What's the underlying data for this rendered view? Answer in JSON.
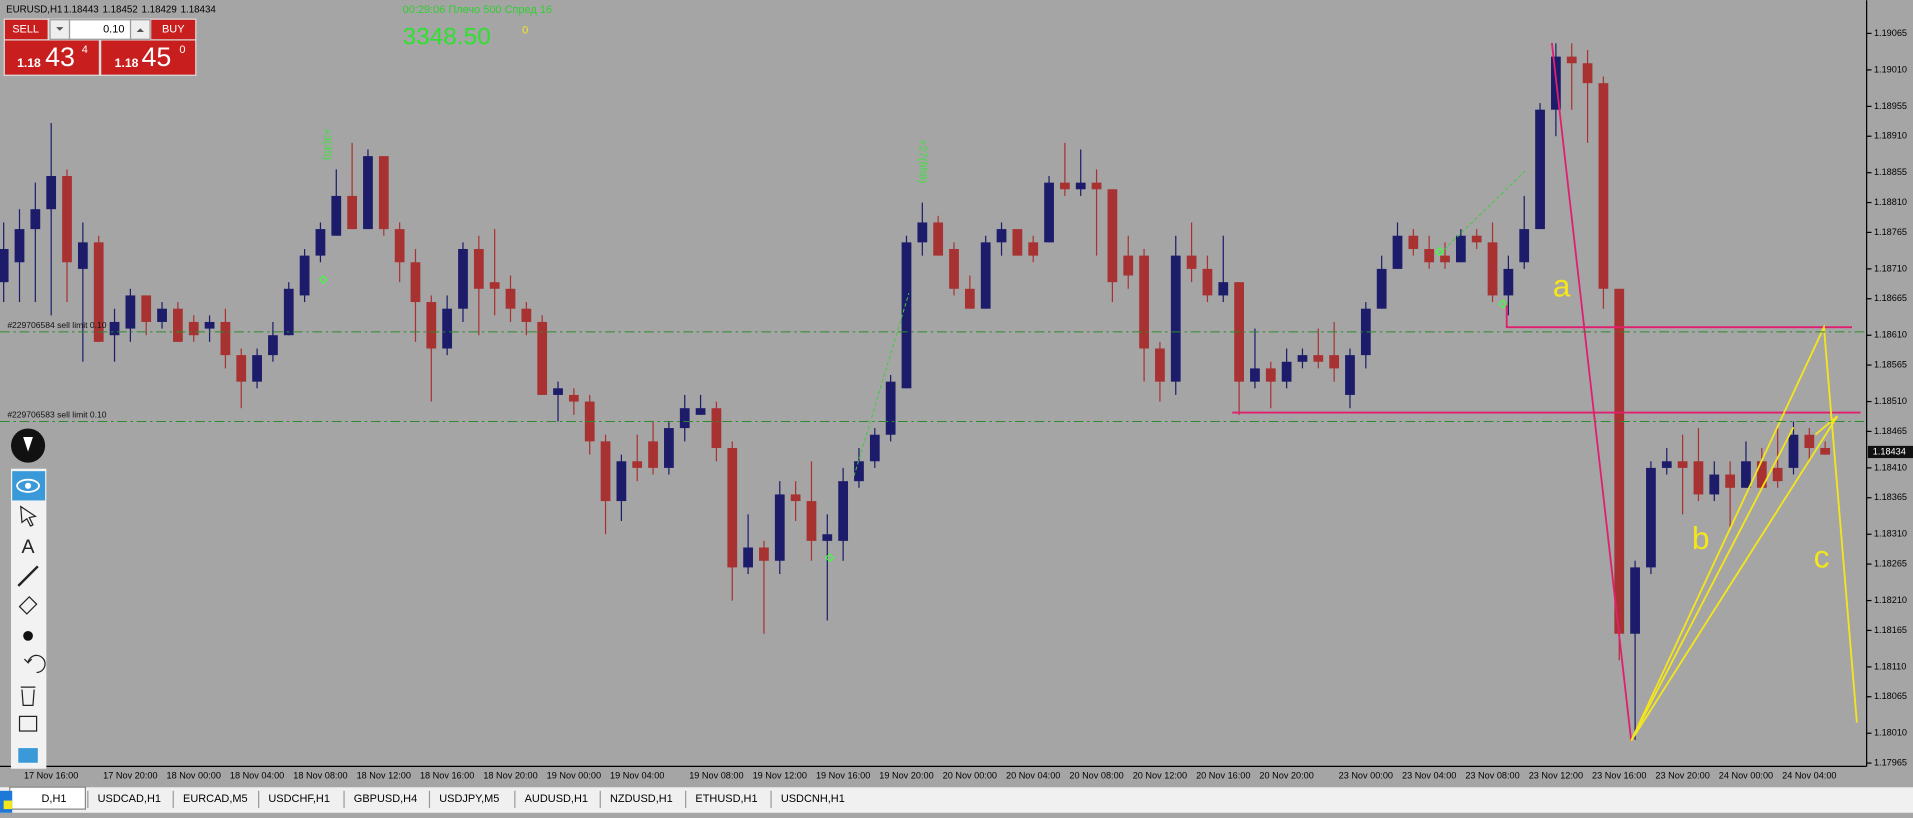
{
  "header": {
    "symbol": "EURUSD,H1",
    "ohlc": [
      1.18443,
      1.18452,
      1.18429,
      1.18434
    ]
  },
  "trade_panel": {
    "sell": "SELL",
    "buy": "BUY",
    "lot": "0.10",
    "bid": {
      "big": "1.18",
      "pips": "43",
      "point": "4"
    },
    "ask": {
      "big": "1.18",
      "pips": "45",
      "point": "0"
    }
  },
  "info": {
    "status": "00:29:06 Плечо 500 Спред 16",
    "balance": "3348.50",
    "counter": "0"
  },
  "tabs": [
    "D,H1",
    "USDCAD,H1",
    "EURCAD,M5",
    "USDCHF,H1",
    "GBPUSD,H4",
    "USDJPY,M5",
    "AUDUSD,H1",
    "NZDUSD,H1",
    "ETHUSD,H1",
    "USDCNH,H1"
  ],
  "chart_data": {
    "type": "candlestick",
    "up_color": "#1c1c6b",
    "down_color": "#a83232",
    "ylim": [
      1.1796,
      1.19115
    ],
    "yticks": [
      1.19065,
      {
        "value": 1.1901,
        "label": "1.19010"
      },
      1.18955,
      {
        "value": 1.1891,
        "label": "1.18910"
      },
      1.18855,
      {
        "value": 1.1881,
        "label": "1.18810"
      },
      1.18765,
      {
        "value": 1.1871,
        "label": "1.18710"
      },
      1.18665,
      {
        "value": 1.1861,
        "label": "1.18610"
      },
      1.18565,
      {
        "value": 1.1851,
        "label": "1.18510"
      },
      1.18465,
      {
        "value": 1.1841,
        "label": "1.18410"
      },
      1.18365,
      {
        "value": 1.1831,
        "label": "1.18310"
      },
      1.18265,
      {
        "value": 1.1821,
        "label": "1.18210"
      },
      1.18165,
      {
        "value": 1.1811,
        "label": "1.18110"
      },
      1.18065,
      {
        "value": 1.1801,
        "label": "1.18010"
      },
      1.17965
    ],
    "last_price": 1.18434,
    "orders": [
      {
        "label": "#229706584 sell limit 0.10",
        "price": 1.18615
      },
      {
        "label": "#229706583 sell limit 0.10",
        "price": 1.1848
      }
    ],
    "annotations": [
      "+3(45)",
      "+27(858)",
      "a",
      "b",
      "c"
    ],
    "categories": [
      null,
      null,
      null,
      "17 Nov 16:00",
      null,
      null,
      null,
      null,
      "17 Nov 20:00",
      null,
      null,
      null,
      "18 Nov 00:00",
      null,
      null,
      null,
      "18 Nov 04:00",
      null,
      null,
      null,
      "18 Nov 08:00",
      null,
      null,
      null,
      "18 Nov 12:00",
      null,
      null,
      null,
      "18 Nov 16:00",
      null,
      null,
      null,
      "18 Nov 20:00",
      null,
      null,
      null,
      "19 Nov 00:00",
      null,
      null,
      null,
      "19 Nov 04:00",
      null,
      null,
      null,
      null,
      "19 Nov 08:00",
      null,
      null,
      null,
      "19 Nov 12:00",
      null,
      null,
      null,
      "19 Nov 16:00",
      null,
      null,
      null,
      "19 Nov 20:00",
      null,
      null,
      null,
      "20 Nov 00:00",
      null,
      null,
      null,
      "20 Nov 04:00",
      null,
      null,
      null,
      "20 Nov 08:00",
      null,
      null,
      null,
      "20 Nov 12:00",
      null,
      null,
      null,
      "20 Nov 16:00",
      null,
      null,
      null,
      "20 Nov 20:00",
      null,
      null,
      null,
      null,
      "23 Nov 00:00",
      null,
      null,
      null,
      "23 Nov 04:00",
      null,
      null,
      null,
      "23 Nov 08:00",
      null,
      null,
      null,
      "23 Nov 12:00",
      null,
      null,
      null,
      "23 Nov 16:00",
      null,
      null,
      null,
      "23 Nov 20:00",
      null,
      null,
      null,
      "24 Nov 00:00",
      null,
      null,
      null,
      "24 Nov 04:00",
      null
    ],
    "candles": [
      [
        1.1869,
        1.1878,
        1.1866,
        1.1874
      ],
      [
        1.1872,
        1.188,
        1.1866,
        1.1877
      ],
      [
        1.1877,
        1.1884,
        1.1866,
        1.188
      ],
      [
        1.188,
        1.1893,
        1.1864,
        1.1885
      ],
      [
        1.1885,
        1.1886,
        1.1866,
        1.1872
      ],
      [
        1.1871,
        1.1878,
        1.1857,
        1.1875
      ],
      [
        1.1875,
        1.1876,
        1.186,
        1.186
      ],
      [
        1.1861,
        1.1865,
        1.1857,
        1.1863
      ],
      [
        1.1862,
        1.1868,
        1.186,
        1.1867
      ],
      [
        1.1867,
        1.1867,
        1.1861,
        1.1863
      ],
      [
        1.1863,
        1.1866,
        1.1862,
        1.1865
      ],
      [
        1.1865,
        1.1866,
        1.186,
        1.186
      ],
      [
        1.1863,
        1.1864,
        1.186,
        1.1861
      ],
      [
        1.1862,
        1.1864,
        1.186,
        1.1863
      ],
      [
        1.1863,
        1.1865,
        1.1856,
        1.1858
      ],
      [
        1.1858,
        1.1859,
        1.185,
        1.1854
      ],
      [
        1.1854,
        1.1859,
        1.1853,
        1.1858
      ],
      [
        1.1858,
        1.1863,
        1.1857,
        1.1861
      ],
      [
        1.1861,
        1.1869,
        1.1861,
        1.1868
      ],
      [
        1.1867,
        1.1874,
        1.1866,
        1.1873
      ],
      [
        1.1873,
        1.1878,
        1.1872,
        1.1877
      ],
      [
        1.1876,
        1.1886,
        1.1876,
        1.1882
      ],
      [
        1.1882,
        1.189,
        1.1877,
        1.1877
      ],
      [
        1.1877,
        1.1889,
        1.1877,
        1.1888
      ],
      [
        1.1888,
        1.1888,
        1.1876,
        1.1877
      ],
      [
        1.1877,
        1.1878,
        1.1869,
        1.1872
      ],
      [
        1.1872,
        1.1874,
        1.186,
        1.1866
      ],
      [
        1.1866,
        1.1867,
        1.1851,
        1.1859
      ],
      [
        1.1859,
        1.1867,
        1.1858,
        1.1865
      ],
      [
        1.1865,
        1.1875,
        1.1863,
        1.1874
      ],
      [
        1.1874,
        1.1876,
        1.1861,
        1.1868
      ],
      [
        1.1869,
        1.1877,
        1.1864,
        1.1868
      ],
      [
        1.1868,
        1.187,
        1.1863,
        1.1865
      ],
      [
        1.1865,
        1.1866,
        1.1861,
        1.1863
      ],
      [
        1.1863,
        1.1864,
        1.1852,
        1.1852
      ],
      [
        1.1852,
        1.1854,
        1.1848,
        1.1853
      ],
      [
        1.1852,
        1.1853,
        1.1849,
        1.1851
      ],
      [
        1.1851,
        1.1852,
        1.1843,
        1.1845
      ],
      [
        1.1845,
        1.1846,
        1.1831,
        1.1836
      ],
      [
        1.1836,
        1.1843,
        1.1833,
        1.1842
      ],
      [
        1.1842,
        1.1846,
        1.1839,
        1.1841
      ],
      [
        1.1845,
        1.1848,
        1.184,
        1.1841
      ],
      [
        1.1841,
        1.1848,
        1.184,
        1.1847
      ],
      [
        1.1847,
        1.1852,
        1.1845,
        1.185
      ],
      [
        1.1849,
        1.1852,
        1.1849,
        1.185
      ],
      [
        1.185,
        1.1851,
        1.1842,
        1.1844
      ],
      [
        1.1844,
        1.1845,
        1.1821,
        1.1826
      ],
      [
        1.1826,
        1.1834,
        1.1825,
        1.1829
      ],
      [
        1.1829,
        1.183,
        1.1816,
        1.1827
      ],
      [
        1.1827,
        1.1839,
        1.1825,
        1.1837
      ],
      [
        1.1837,
        1.1839,
        1.1833,
        1.1836
      ],
      [
        1.1836,
        1.1842,
        1.1827,
        1.183
      ],
      [
        1.183,
        1.1834,
        1.1818,
        1.1831
      ],
      [
        1.183,
        1.1841,
        1.1827,
        1.1839
      ],
      [
        1.1839,
        1.1844,
        1.1838,
        1.1842
      ],
      [
        1.1842,
        1.1847,
        1.1841,
        1.1846
      ],
      [
        1.1846,
        1.1855,
        1.1845,
        1.1854
      ],
      [
        1.1853,
        1.1876,
        1.1853,
        1.1875
      ],
      [
        1.1875,
        1.1881,
        1.1873,
        1.1878
      ],
      [
        1.1878,
        1.1879,
        1.1873,
        1.1873
      ],
      [
        1.1874,
        1.1875,
        1.1867,
        1.1868
      ],
      [
        1.1868,
        1.187,
        1.1865,
        1.1865
      ],
      [
        1.1865,
        1.1876,
        1.1865,
        1.1875
      ],
      [
        1.1875,
        1.1878,
        1.1873,
        1.1877
      ],
      [
        1.1877,
        1.1877,
        1.1873,
        1.1873
      ],
      [
        1.1875,
        1.1876,
        1.1872,
        1.1873
      ],
      [
        1.1875,
        1.1885,
        1.1875,
        1.1884
      ],
      [
        1.1884,
        1.189,
        1.1882,
        1.1883
      ],
      [
        1.1883,
        1.1889,
        1.1882,
        1.1884
      ],
      [
        1.1884,
        1.1886,
        1.1873,
        1.1883
      ],
      [
        1.1883,
        1.1883,
        1.1866,
        1.1869
      ],
      [
        1.1873,
        1.1876,
        1.1868,
        1.187
      ],
      [
        1.1873,
        1.1874,
        1.1854,
        1.1859
      ],
      [
        1.1859,
        1.186,
        1.1851,
        1.1854
      ],
      [
        1.1854,
        1.1876,
        1.1852,
        1.1873
      ],
      [
        1.1873,
        1.1878,
        1.1869,
        1.1871
      ],
      [
        1.1871,
        1.1873,
        1.1866,
        1.1867
      ],
      [
        1.1867,
        1.1876,
        1.1866,
        1.1869
      ],
      [
        1.1869,
        1.1869,
        1.1849,
        1.1854
      ],
      [
        1.1854,
        1.1862,
        1.1853,
        1.1856
      ],
      [
        1.1856,
        1.1857,
        1.185,
        1.1854
      ],
      [
        1.1854,
        1.1859,
        1.1853,
        1.1857
      ],
      [
        1.1857,
        1.1859,
        1.1856,
        1.1858
      ],
      [
        1.1858,
        1.1862,
        1.1856,
        1.1857
      ],
      [
        1.1858,
        1.1863,
        1.1854,
        1.1856
      ],
      [
        1.1852,
        1.1859,
        1.185,
        1.1858
      ],
      [
        1.1858,
        1.1866,
        1.1856,
        1.1865
      ],
      [
        1.1865,
        1.1873,
        1.1865,
        1.1871
      ],
      [
        1.1871,
        1.1878,
        1.1871,
        1.1876
      ],
      [
        1.1876,
        1.1877,
        1.1873,
        1.1874
      ],
      [
        1.1874,
        1.1876,
        1.1871,
        1.1872
      ],
      [
        1.1873,
        1.1875,
        1.1871,
        1.1872
      ],
      [
        1.1872,
        1.1877,
        1.1872,
        1.1876
      ],
      [
        1.1876,
        1.1877,
        1.1874,
        1.1875
      ],
      [
        1.1875,
        1.1878,
        1.1866,
        1.1867
      ],
      [
        1.1867,
        1.1873,
        1.1864,
        1.1871
      ],
      [
        1.1872,
        1.1882,
        1.1871,
        1.1877
      ],
      [
        1.1877,
        1.1896,
        1.1877,
        1.1895
      ],
      [
        1.1895,
        1.1905,
        1.1891,
        1.1903
      ],
      [
        1.1903,
        1.1905,
        1.1895,
        1.1902
      ],
      [
        1.1902,
        1.1904,
        1.189,
        1.1899
      ],
      [
        1.1899,
        1.19,
        1.1865,
        1.1868
      ],
      [
        1.1868,
        1.1868,
        1.1812,
        1.1816
      ],
      [
        1.1816,
        1.1827,
        1.18,
        1.1826
      ],
      [
        1.1826,
        1.1842,
        1.1825,
        1.1841
      ],
      [
        1.1841,
        1.1844,
        1.184,
        1.1842
      ],
      [
        1.1842,
        1.1846,
        1.1834,
        1.1841
      ],
      [
        1.1842,
        1.1847,
        1.1836,
        1.1837
      ],
      [
        1.1837,
        1.1842,
        1.1836,
        1.184
      ],
      [
        1.184,
        1.1842,
        1.1832,
        1.1838
      ],
      [
        1.1838,
        1.1845,
        1.1838,
        1.1842
      ],
      [
        1.1842,
        1.1844,
        1.1838,
        1.1838
      ],
      [
        1.1841,
        1.1847,
        1.1838,
        1.1839
      ],
      [
        1.1841,
        1.1848,
        1.184,
        1.1846
      ],
      [
        1.1846,
        1.1847,
        1.1842,
        1.1844
      ],
      [
        1.1844,
        1.1845,
        1.1843,
        1.1843
      ]
    ]
  }
}
